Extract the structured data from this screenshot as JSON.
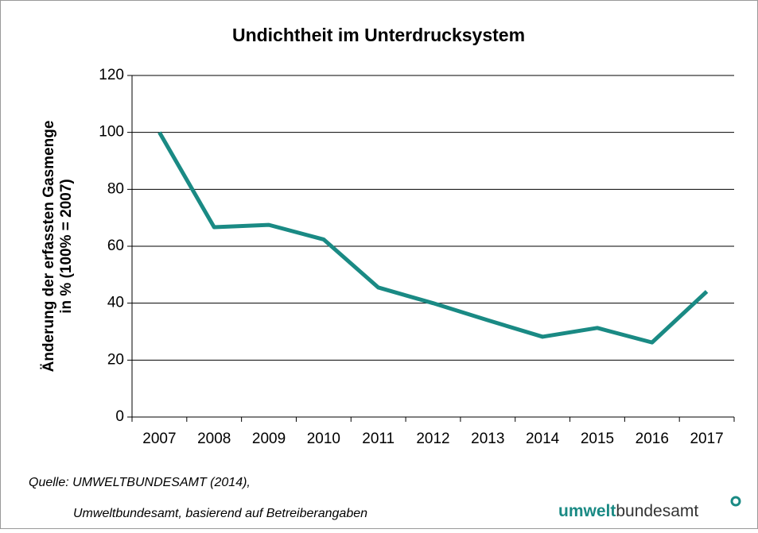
{
  "chart_data": {
    "type": "line",
    "title": "Undichtheit im Unterdrucksystem",
    "y_label": [
      "Änderung der erfassten Gasmenge",
      "in % (100% = 2007)"
    ],
    "categories": [
      "2007",
      "2008",
      "2009",
      "2010",
      "2011",
      "2012",
      "2013",
      "2014",
      "2015",
      "2016",
      "2017"
    ],
    "values": [
      100,
      66.7,
      67.5,
      62.4,
      45.5,
      40,
      34,
      28.2,
      31.3,
      26.2,
      44.1
    ],
    "color": "#1a8a84",
    "ylim": [
      0,
      120
    ],
    "yticks": [
      0,
      20,
      40,
      60,
      80,
      100,
      120
    ],
    "grid": true
  },
  "source": [
    "Quelle: UMWELTBUNDESAMT (2014),",
    "Umweltbundesamt, basierend auf Betreiberangaben"
  ],
  "logo": {
    "bold": "umwelt",
    "rest": "bundesamt"
  }
}
